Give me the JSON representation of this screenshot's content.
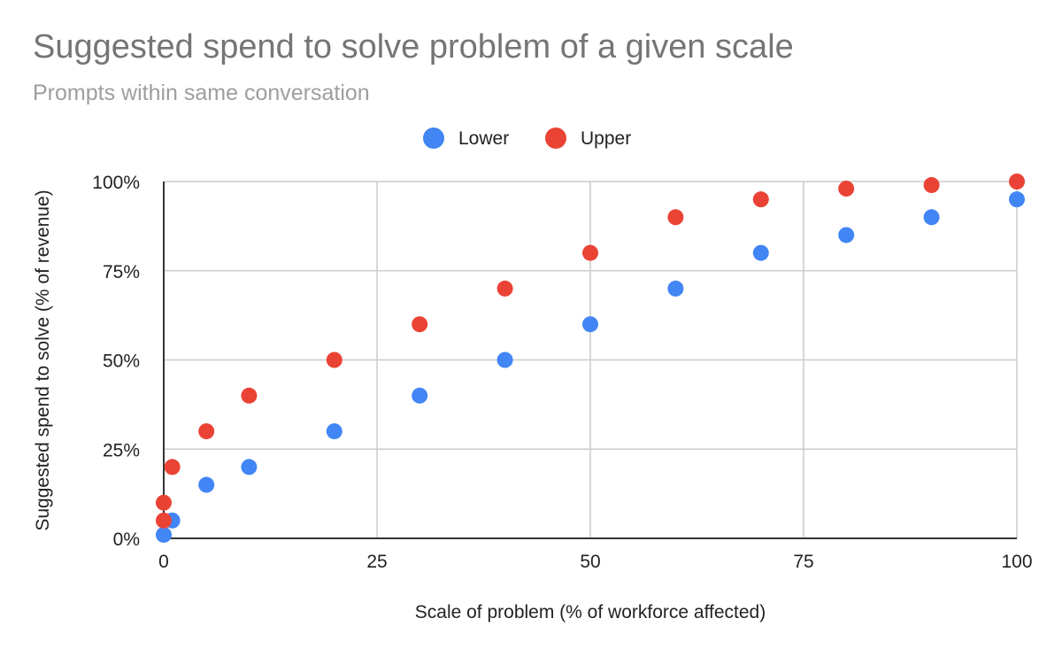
{
  "chart_data": {
    "type": "scatter",
    "title": "Suggested spend to solve problem of a given scale",
    "subtitle": "Prompts within same conversation",
    "xlabel": "Scale of problem (% of workforce affected)",
    "ylabel": "Suggested spend to solve (% of revenue)",
    "xlim": [
      0,
      100
    ],
    "ylim": [
      0,
      100
    ],
    "x_ticks": [
      0,
      25,
      50,
      75,
      100
    ],
    "y_ticks": [
      0,
      25,
      50,
      75,
      100
    ],
    "x_tick_labels": [
      "0",
      "25",
      "50",
      "75",
      "100"
    ],
    "y_tick_labels": [
      "0%",
      "25%",
      "50%",
      "75%",
      "100%"
    ],
    "legend_position": "top",
    "grid": true,
    "series": [
      {
        "name": "Lower",
        "color": "#4285f4",
        "points": [
          [
            0,
            1
          ],
          [
            1,
            5
          ],
          [
            5,
            15
          ],
          [
            10,
            20
          ],
          [
            20,
            30
          ],
          [
            30,
            40
          ],
          [
            40,
            50
          ],
          [
            50,
            60
          ],
          [
            60,
            70
          ],
          [
            70,
            80
          ],
          [
            80,
            85
          ],
          [
            90,
            90
          ],
          [
            100,
            95
          ]
        ]
      },
      {
        "name": "Upper",
        "color": "#ea4335",
        "points": [
          [
            0,
            5
          ],
          [
            0,
            10
          ],
          [
            1,
            20
          ],
          [
            5,
            30
          ],
          [
            10,
            40
          ],
          [
            20,
            50
          ],
          [
            30,
            60
          ],
          [
            40,
            70
          ],
          [
            50,
            80
          ],
          [
            60,
            90
          ],
          [
            70,
            95
          ],
          [
            80,
            98
          ],
          [
            90,
            99
          ],
          [
            100,
            100
          ]
        ]
      }
    ]
  }
}
